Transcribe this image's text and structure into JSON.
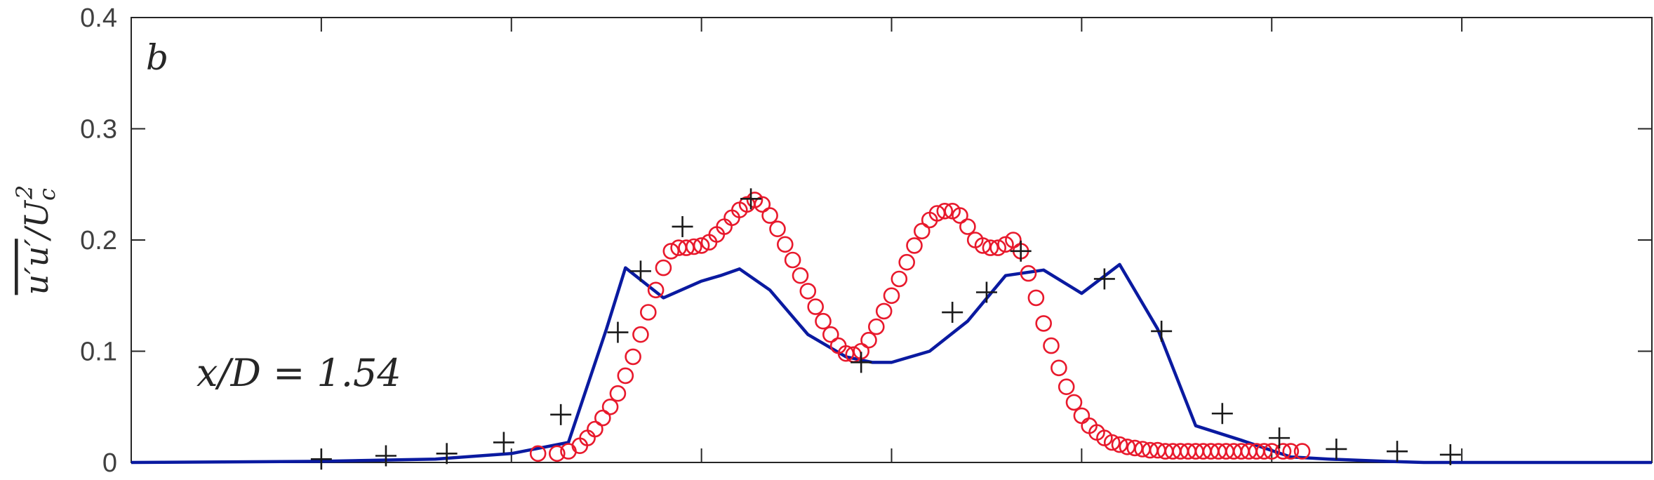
{
  "chart_data": {
    "type": "line",
    "panel_label": "b",
    "annotation": "x/D = 1.54",
    "ylabel": "u'u'/U_c^2",
    "ylabel_parts": {
      "num": "u′u′",
      "slash": "/",
      "den": "U",
      "den_sub": "c",
      "den_sup": "2"
    },
    "xlim": [
      -2,
      2
    ],
    "ylim": [
      0,
      0.4
    ],
    "x_ticks": [
      -2,
      -1.5,
      -1,
      -0.5,
      0,
      0.5,
      1,
      1.5,
      2
    ],
    "y_ticks": [
      0,
      0.1,
      0.2,
      0.3,
      0.4
    ],
    "y_tick_labels": [
      "0",
      "0.1",
      "0.2",
      "0.3",
      "0.4"
    ],
    "grid": false,
    "series": [
      {
        "style": "line",
        "color": "#0a1aa0",
        "x": [
          -2.0,
          -1.5,
          -1.2,
          -1.0,
          -0.85,
          -0.75,
          -0.7,
          -0.6,
          -0.5,
          -0.45,
          -0.4,
          -0.32,
          -0.22,
          -0.12,
          -0.05,
          0.0,
          0.1,
          0.2,
          0.3,
          0.4,
          0.5,
          0.6,
          0.7,
          0.8,
          0.92,
          1.05,
          1.15,
          1.3,
          1.4,
          1.5,
          2.0
        ],
        "y": [
          0.0,
          0.001,
          0.003,
          0.008,
          0.018,
          0.12,
          0.175,
          0.148,
          0.163,
          0.168,
          0.174,
          0.155,
          0.115,
          0.095,
          0.09,
          0.09,
          0.1,
          0.127,
          0.168,
          0.173,
          0.152,
          0.178,
          0.12,
          0.033,
          0.02,
          0.005,
          0.003,
          0.001,
          0.0,
          0.0,
          0.0
        ]
      },
      {
        "style": "markers",
        "marker": "circle",
        "color": "#e8192c",
        "x": [
          -0.93,
          -0.88,
          -0.85,
          -0.82,
          -0.8,
          -0.78,
          -0.76,
          -0.74,
          -0.72,
          -0.7,
          -0.68,
          -0.66,
          -0.64,
          -0.62,
          -0.6,
          -0.58,
          -0.56,
          -0.54,
          -0.52,
          -0.5,
          -0.48,
          -0.46,
          -0.44,
          -0.42,
          -0.4,
          -0.38,
          -0.36,
          -0.34,
          -0.32,
          -0.3,
          -0.28,
          -0.26,
          -0.24,
          -0.22,
          -0.2,
          -0.18,
          -0.16,
          -0.14,
          -0.12,
          -0.1,
          -0.08,
          -0.06,
          -0.04,
          -0.02,
          0.0,
          0.02,
          0.04,
          0.06,
          0.08,
          0.1,
          0.12,
          0.14,
          0.16,
          0.18,
          0.2,
          0.22,
          0.24,
          0.26,
          0.28,
          0.3,
          0.32,
          0.34,
          0.36,
          0.38,
          0.4,
          0.42,
          0.44,
          0.46,
          0.48,
          0.5,
          0.52,
          0.54,
          0.56,
          0.58,
          0.6,
          0.62,
          0.64,
          0.66,
          0.68,
          0.7,
          0.72,
          0.74,
          0.76,
          0.78,
          0.8,
          0.82,
          0.84,
          0.86,
          0.88,
          0.9,
          0.92,
          0.94,
          0.96,
          0.98,
          1.0,
          1.03,
          1.05,
          1.08
        ],
        "y": [
          0.008,
          0.008,
          0.01,
          0.015,
          0.022,
          0.03,
          0.04,
          0.05,
          0.062,
          0.078,
          0.095,
          0.115,
          0.135,
          0.155,
          0.175,
          0.19,
          0.193,
          0.193,
          0.194,
          0.195,
          0.198,
          0.205,
          0.212,
          0.22,
          0.227,
          0.232,
          0.236,
          0.232,
          0.222,
          0.21,
          0.196,
          0.182,
          0.168,
          0.154,
          0.14,
          0.127,
          0.115,
          0.105,
          0.098,
          0.097,
          0.1,
          0.11,
          0.122,
          0.136,
          0.15,
          0.165,
          0.18,
          0.195,
          0.208,
          0.218,
          0.224,
          0.226,
          0.226,
          0.222,
          0.212,
          0.2,
          0.195,
          0.193,
          0.193,
          0.196,
          0.2,
          0.19,
          0.17,
          0.148,
          0.125,
          0.105,
          0.085,
          0.068,
          0.054,
          0.042,
          0.033,
          0.027,
          0.022,
          0.018,
          0.016,
          0.014,
          0.013,
          0.012,
          0.011,
          0.011,
          0.01,
          0.01,
          0.01,
          0.01,
          0.01,
          0.01,
          0.01,
          0.01,
          0.01,
          0.01,
          0.01,
          0.01,
          0.01,
          0.01,
          0.01,
          0.01,
          0.01,
          0.01
        ]
      },
      {
        "style": "markers",
        "marker": "plus",
        "color": "#1a1a1a",
        "x": [
          -1.5,
          -1.33,
          -1.17,
          -1.02,
          -0.87,
          -0.72,
          -0.66,
          -0.55,
          -0.37,
          -0.08,
          0.16,
          0.25,
          0.34,
          0.56,
          0.71,
          0.87,
          1.02,
          1.17,
          1.33,
          1.47
        ],
        "y": [
          0.003,
          0.006,
          0.008,
          0.018,
          0.043,
          0.117,
          0.172,
          0.212,
          0.237,
          0.09,
          0.135,
          0.153,
          0.19,
          0.165,
          0.118,
          0.044,
          0.022,
          0.012,
          0.01,
          0.007
        ]
      }
    ]
  }
}
